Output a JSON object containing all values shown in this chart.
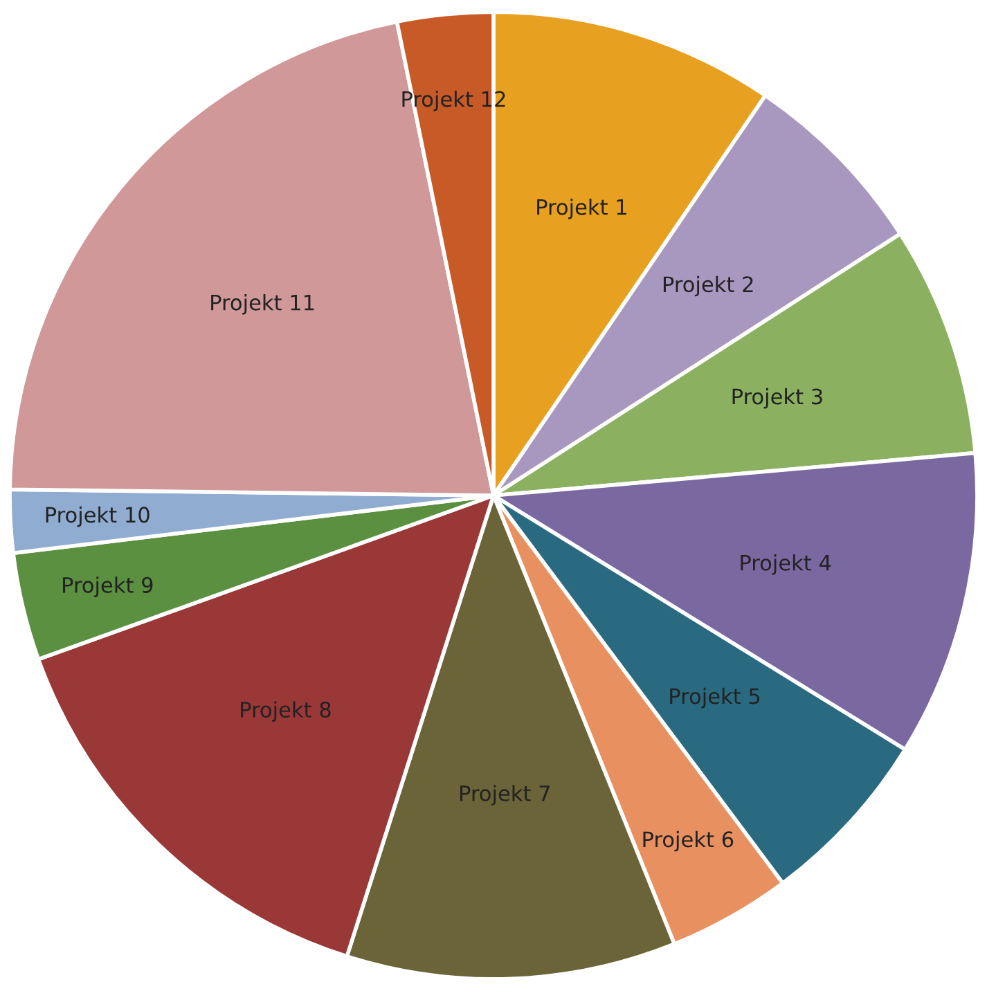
{
  "chart_data": {
    "type": "pie",
    "categories": [
      "Projekt 1",
      "Projekt 2",
      "Projekt 3",
      "Projekt 4",
      "Projekt 5",
      "Projekt 6",
      "Projekt 7",
      "Projekt 8",
      "Projekt 9",
      "Projekt 10",
      "Projekt 11",
      "Projekt 12"
    ],
    "values": [
      9.5,
      6.4,
      7.7,
      10.2,
      6.0,
      4.1,
      11.0,
      14.6,
      3.6,
      2.1,
      21.6,
      3.2
    ],
    "colors": [
      "#e8a020",
      "#a898c0",
      "#8ab060",
      "#7a68a0",
      "#2a6a80",
      "#e89060",
      "#6a6438",
      "#9a3838",
      "#5a9040",
      "#90acd0",
      "#d09898",
      "#c85a28"
    ]
  }
}
